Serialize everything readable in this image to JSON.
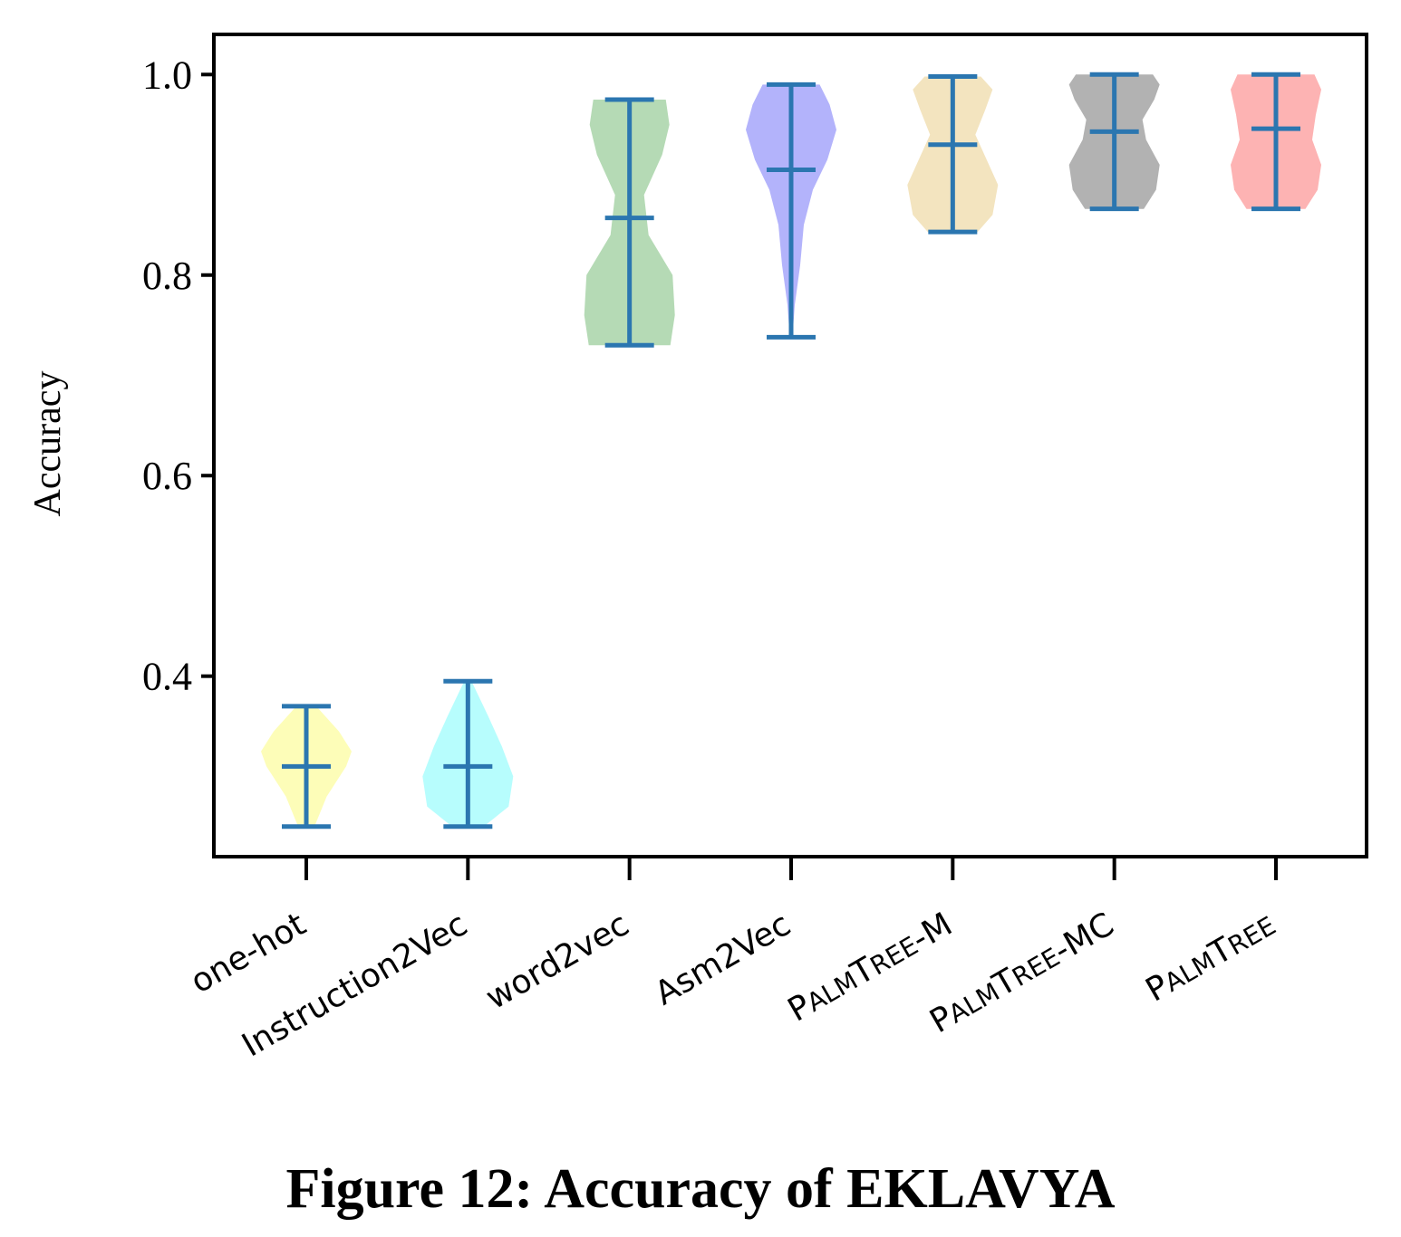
{
  "chart_data": {
    "type": "violin",
    "ylabel": "Accuracy",
    "ylim": [
      0.22,
      1.04
    ],
    "yticks": [
      0.4,
      0.6,
      0.8,
      1.0
    ],
    "ytick_labels": [
      "0.4",
      "0.6",
      "0.8",
      "1.0"
    ],
    "error_color": "#2b76b0",
    "series": [
      {
        "name": "one-hot",
        "display": [
          "one-hot"
        ],
        "min": 0.25,
        "mean": 0.31,
        "max": 0.37,
        "color": "#fdfdb8",
        "shape": [
          [
            0.25,
            0.18
          ],
          [
            0.28,
            0.45
          ],
          [
            0.31,
            0.88
          ],
          [
            0.325,
            1.0
          ],
          [
            0.345,
            0.72
          ],
          [
            0.37,
            0.22
          ]
        ]
      },
      {
        "name": "Instruction2Vec",
        "display": [
          "Instruction2Vec"
        ],
        "min": 0.25,
        "mean": 0.31,
        "max": 0.395,
        "color": "#b7fdfd",
        "shape": [
          [
            0.25,
            0.35
          ],
          [
            0.27,
            0.9
          ],
          [
            0.3,
            1.0
          ],
          [
            0.33,
            0.75
          ],
          [
            0.36,
            0.45
          ],
          [
            0.395,
            0.08
          ]
        ]
      },
      {
        "name": "word2vec",
        "display": [
          "word2vec"
        ],
        "min": 0.73,
        "mean": 0.857,
        "max": 0.975,
        "color": "#b5dab5",
        "shape": [
          [
            0.73,
            0.9
          ],
          [
            0.76,
            1.0
          ],
          [
            0.8,
            0.95
          ],
          [
            0.84,
            0.42
          ],
          [
            0.88,
            0.32
          ],
          [
            0.92,
            0.72
          ],
          [
            0.95,
            0.88
          ],
          [
            0.975,
            0.8
          ]
        ]
      },
      {
        "name": "Asm2Vec",
        "display": [
          "Asm2Vec"
        ],
        "min": 0.738,
        "mean": 0.905,
        "max": 0.99,
        "color": "#b3b3fb",
        "shape": [
          [
            0.738,
            0.03
          ],
          [
            0.77,
            0.08
          ],
          [
            0.81,
            0.2
          ],
          [
            0.85,
            0.28
          ],
          [
            0.885,
            0.48
          ],
          [
            0.915,
            0.8
          ],
          [
            0.945,
            1.0
          ],
          [
            0.97,
            0.85
          ],
          [
            0.99,
            0.63
          ]
        ]
      },
      {
        "name": "PalmTree-M",
        "display": [
          "P",
          "ALM",
          "T",
          "REE",
          "-M"
        ],
        "min": 0.843,
        "mean": 0.93,
        "max": 0.998,
        "color": "#f3e4bf",
        "shape": [
          [
            0.843,
            0.55
          ],
          [
            0.86,
            0.88
          ],
          [
            0.89,
            1.0
          ],
          [
            0.92,
            0.7
          ],
          [
            0.94,
            0.5
          ],
          [
            0.965,
            0.72
          ],
          [
            0.985,
            0.88
          ],
          [
            0.998,
            0.62
          ]
        ]
      },
      {
        "name": "PalmTree-MC",
        "display": [
          "P",
          "ALM",
          "T",
          "REE",
          "-MC"
        ],
        "min": 0.866,
        "mean": 0.943,
        "max": 1.0,
        "color": "#b2b2b2",
        "shape": [
          [
            0.866,
            0.65
          ],
          [
            0.885,
            0.92
          ],
          [
            0.91,
            1.0
          ],
          [
            0.935,
            0.7
          ],
          [
            0.955,
            0.62
          ],
          [
            0.975,
            0.88
          ],
          [
            0.99,
            1.0
          ],
          [
            1.0,
            0.85
          ]
        ]
      },
      {
        "name": "PalmTree",
        "display": [
          "P",
          "ALM",
          "T",
          "REE"
        ],
        "min": 0.866,
        "mean": 0.946,
        "max": 1.0,
        "color": "#fdb3b3",
        "shape": [
          [
            0.866,
            0.65
          ],
          [
            0.885,
            0.92
          ],
          [
            0.91,
            1.0
          ],
          [
            0.935,
            0.8
          ],
          [
            0.96,
            0.88
          ],
          [
            0.985,
            1.0
          ],
          [
            1.0,
            0.85
          ]
        ]
      }
    ]
  },
  "caption": "Figure 12: Accuracy of EKLAVYA"
}
